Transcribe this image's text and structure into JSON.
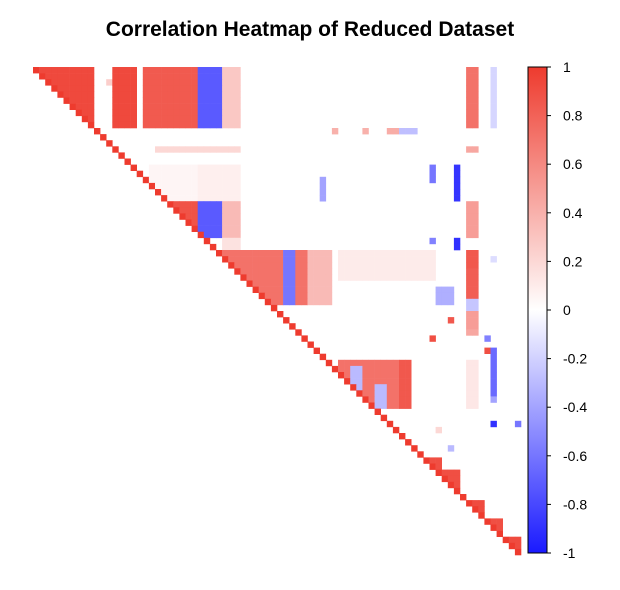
{
  "chart_data": {
    "type": "heatmap",
    "title": "Correlation Heatmap of Reduced Dataset",
    "layout": "upper-triangle",
    "size": 80,
    "value_range": [
      -1,
      1
    ],
    "colorscale": {
      "low": "#1a1aff",
      "mid": "#ffffff",
      "high": "#ee3b2e"
    },
    "colorbar": {
      "placement": "right",
      "ticks": [
        "1",
        "0.8",
        "0.6",
        "0.4",
        "0.2",
        "0",
        "-0.2",
        "-0.4",
        "-0.6",
        "-0.8",
        "-1"
      ],
      "tick_values": [
        1,
        0.8,
        0.6,
        0.4,
        0.2,
        0,
        -0.2,
        -0.4,
        -0.6,
        -0.8,
        -1
      ]
    },
    "diagonal_value": 1,
    "background_value": 0.02,
    "blocks": [
      {
        "rows": [
          0,
          9
        ],
        "cols": [
          0,
          9
        ],
        "value": 0.93
      },
      {
        "rows": [
          0,
          9
        ],
        "cols": [
          13,
          16
        ],
        "value": 0.93
      },
      {
        "rows": [
          0,
          9
        ],
        "cols": [
          18,
          26
        ],
        "value": 0.84
      },
      {
        "rows": [
          0,
          9
        ],
        "cols": [
          27,
          30
        ],
        "value": -0.72
      },
      {
        "rows": [
          0,
          9
        ],
        "cols": [
          31,
          33
        ],
        "value": 0.28
      },
      {
        "rows": [
          0,
          9
        ],
        "cols": [
          71,
          72
        ],
        "value": 0.72
      },
      {
        "rows": [
          0,
          9
        ],
        "cols": [
          75,
          75
        ],
        "value": -0.18
      },
      {
        "rows": [
          2,
          2
        ],
        "cols": [
          12,
          12
        ],
        "value": 0.25
      },
      {
        "rows": [
          10,
          10
        ],
        "cols": [
          49,
          49
        ],
        "value": 0.4
      },
      {
        "rows": [
          10,
          10
        ],
        "cols": [
          54,
          54
        ],
        "value": 0.4
      },
      {
        "rows": [
          10,
          10
        ],
        "cols": [
          58,
          59
        ],
        "value": 0.42
      },
      {
        "rows": [
          10,
          10
        ],
        "cols": [
          60,
          62
        ],
        "value": -0.28
      },
      {
        "rows": [
          13,
          13
        ],
        "cols": [
          20,
          33
        ],
        "value": 0.2
      },
      {
        "rows": [
          13,
          13
        ],
        "cols": [
          71,
          72
        ],
        "value": 0.45
      },
      {
        "rows": [
          16,
          27
        ],
        "cols": [
          27,
          33
        ],
        "value": 0.08
      },
      {
        "rows": [
          16,
          21
        ],
        "cols": [
          19,
          26
        ],
        "value": 0.05
      },
      {
        "rows": [
          18,
          21
        ],
        "cols": [
          47,
          47
        ],
        "value": -0.4
      },
      {
        "rows": [
          16,
          18
        ],
        "cols": [
          65,
          65
        ],
        "value": -0.6
      },
      {
        "rows": [
          16,
          21
        ],
        "cols": [
          69,
          69
        ],
        "value": -0.88
      },
      {
        "rows": [
          22,
          27
        ],
        "cols": [
          18,
          26
        ],
        "value": 0.88
      },
      {
        "rows": [
          22,
          27
        ],
        "cols": [
          27,
          30
        ],
        "value": -0.72
      },
      {
        "rows": [
          22,
          27
        ],
        "cols": [
          31,
          33
        ],
        "value": 0.35
      },
      {
        "rows": [
          22,
          27
        ],
        "cols": [
          71,
          72
        ],
        "value": 0.5
      },
      {
        "rows": [
          28,
          29
        ],
        "cols": [
          31,
          33
        ],
        "value": 0.15
      },
      {
        "rows": [
          28,
          28
        ],
        "cols": [
          65,
          65
        ],
        "value": -0.55
      },
      {
        "rows": [
          28,
          29
        ],
        "cols": [
          69,
          69
        ],
        "value": -0.9
      },
      {
        "rows": [
          30,
          38
        ],
        "cols": [
          31,
          44
        ],
        "value": 0.72
      },
      {
        "rows": [
          30,
          38
        ],
        "cols": [
          41,
          42
        ],
        "value": -0.6
      },
      {
        "rows": [
          30,
          38
        ],
        "cols": [
          45,
          48
        ],
        "value": 0.35
      },
      {
        "rows": [
          30,
          34
        ],
        "cols": [
          50,
          65
        ],
        "value": 0.1
      },
      {
        "rows": [
          30,
          32
        ],
        "cols": [
          71,
          72
        ],
        "value": 0.85
      },
      {
        "rows": [
          33,
          37
        ],
        "cols": [
          71,
          72
        ],
        "value": 0.82
      },
      {
        "rows": [
          31,
          31
        ],
        "cols": [
          75,
          75
        ],
        "value": -0.15
      },
      {
        "rows": [
          36,
          38
        ],
        "cols": [
          66,
          68
        ],
        "value": -0.35
      },
      {
        "rows": [
          38,
          40
        ],
        "cols": [
          71,
          72
        ],
        "value": -0.25
      },
      {
        "rows": [
          40,
          42
        ],
        "cols": [
          71,
          72
        ],
        "value": 0.5
      },
      {
        "rows": [
          41,
          41
        ],
        "cols": [
          68,
          68
        ],
        "value": 0.85
      },
      {
        "rows": [
          44,
          44
        ],
        "cols": [
          65,
          65
        ],
        "value": 0.9
      },
      {
        "rows": [
          44,
          44
        ],
        "cols": [
          74,
          74
        ],
        "value": -0.55
      },
      {
        "rows": [
          43,
          43
        ],
        "cols": [
          71,
          72
        ],
        "value": 0.45
      },
      {
        "rows": [
          46,
          46
        ],
        "cols": [
          74,
          74
        ],
        "value": 0.9
      },
      {
        "rows": [
          46,
          54
        ],
        "cols": [
          75,
          75
        ],
        "value": -0.65
      },
      {
        "rows": [
          48,
          55
        ],
        "cols": [
          50,
          59
        ],
        "value": 0.72
      },
      {
        "rows": [
          48,
          55
        ],
        "cols": [
          60,
          61
        ],
        "value": 0.85
      },
      {
        "rows": [
          49,
          54
        ],
        "cols": [
          52,
          53
        ],
        "value": -0.3
      },
      {
        "rows": [
          52,
          55
        ],
        "cols": [
          56,
          57
        ],
        "value": -0.3
      },
      {
        "rows": [
          48,
          55
        ],
        "cols": [
          71,
          72
        ],
        "value": 0.12
      },
      {
        "rows": [
          54,
          54
        ],
        "cols": [
          75,
          75
        ],
        "value": -0.4
      },
      {
        "rows": [
          58,
          58
        ],
        "cols": [
          75,
          75
        ],
        "value": -0.9
      },
      {
        "rows": [
          59,
          59
        ],
        "cols": [
          66,
          66
        ],
        "value": 0.2
      },
      {
        "rows": [
          62,
          62
        ],
        "cols": [
          68,
          68
        ],
        "value": -0.3
      },
      {
        "rows": [
          58,
          58
        ],
        "cols": [
          79,
          79
        ],
        "value": -0.6
      },
      {
        "rows": [
          64,
          66
        ],
        "cols": [
          64,
          66
        ],
        "value": 0.9
      },
      {
        "rows": [
          66,
          68
        ],
        "cols": [
          67,
          69
        ],
        "value": 0.9
      },
      {
        "rows": [
          71,
          73
        ],
        "cols": [
          71,
          73
        ],
        "value": 0.92
      },
      {
        "rows": [
          74,
          76
        ],
        "cols": [
          74,
          76
        ],
        "value": 0.9
      },
      {
        "rows": [
          77,
          79
        ],
        "cols": [
          77,
          79
        ],
        "value": 0.92
      }
    ]
  }
}
